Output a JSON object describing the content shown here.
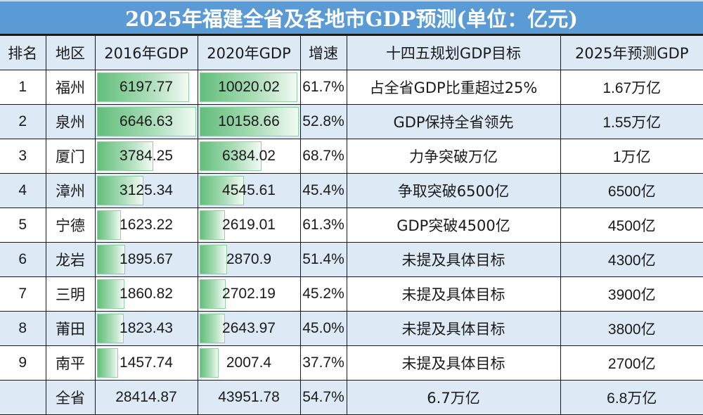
{
  "title": "2025年福建全省及各地市GDP预测(单位：亿元)",
  "colors": {
    "title_bg": "#5b9bd5",
    "header_bg": "#ddeaf6",
    "stripe_bg": "#ddeaf6",
    "bar_green": "#63be7b",
    "prediction_red": "#ff0000"
  },
  "headers": {
    "rank": "排名",
    "region": "地区",
    "gdp2016": "2016年GDP",
    "gdp2020": "2020年GDP",
    "growth": "增速",
    "target": "十四五规划GDP目标",
    "forecast": "2025年预测GDP"
  },
  "rows": [
    {
      "rank": "1",
      "region": "福州",
      "gdp2016": "6197.77",
      "gdp2020": "10020.02",
      "growth": "61.7%",
      "target": "占全省GDP比重超过25%",
      "forecast": "1.67万亿",
      "bar2016": 93.2,
      "bar2020": 98.6
    },
    {
      "rank": "2",
      "region": "泉州",
      "gdp2016": "6646.63",
      "gdp2020": "10158.66",
      "growth": "52.8%",
      "target": "GDP保持全省领先",
      "forecast": "1.55万亿",
      "bar2016": 100,
      "bar2020": 100
    },
    {
      "rank": "3",
      "region": "厦门",
      "gdp2016": "3784.25",
      "gdp2020": "6384.02",
      "growth": "68.7%",
      "target": "力争突破万亿",
      "forecast": "1万亿",
      "bar2016": 56.9,
      "bar2020": 62.8
    },
    {
      "rank": "4",
      "region": "漳州",
      "gdp2016": "3125.34",
      "gdp2020": "4545.61",
      "growth": "45.4%",
      "target": "争取突破6500亿",
      "forecast": "6500亿",
      "bar2016": 47.0,
      "bar2020": 44.7
    },
    {
      "rank": "5",
      "region": "宁德",
      "gdp2016": "1623.22",
      "gdp2020": "2619.01",
      "growth": "61.3%",
      "target": "GDP突破4500亿",
      "forecast": "4500亿",
      "bar2016": 24.4,
      "bar2020": 25.8
    },
    {
      "rank": "6",
      "region": "龙岩",
      "gdp2016": "1895.67",
      "gdp2020": "2870.9",
      "growth": "51.4%",
      "target": "未提及具体目标",
      "forecast": "4300亿",
      "bar2016": 28.5,
      "bar2020": 28.3
    },
    {
      "rank": "7",
      "region": "三明",
      "gdp2016": "1860.82",
      "gdp2020": "2702.19",
      "growth": "45.2%",
      "target": "未提及具体目标",
      "forecast": "3900亿",
      "bar2016": 28.0,
      "bar2020": 26.6
    },
    {
      "rank": "8",
      "region": "莆田",
      "gdp2016": "1823.43",
      "gdp2020": "2643.97",
      "growth": "45.0%",
      "target": "未提及具体目标",
      "forecast": "3800亿",
      "bar2016": 27.4,
      "bar2020": 26.0
    },
    {
      "rank": "9",
      "region": "南平",
      "gdp2016": "1457.74",
      "gdp2020": "2007.4",
      "growth": "37.7%",
      "target": "未提及具体目标",
      "forecast": "2700亿",
      "bar2016": 21.9,
      "bar2020": 19.8
    }
  ],
  "total": {
    "rank": "",
    "region": "全省",
    "gdp2016": "28414.87",
    "gdp2020": "43951.78",
    "growth": "54.7%",
    "target": "6.7万亿",
    "forecast": "6.8万亿"
  }
}
